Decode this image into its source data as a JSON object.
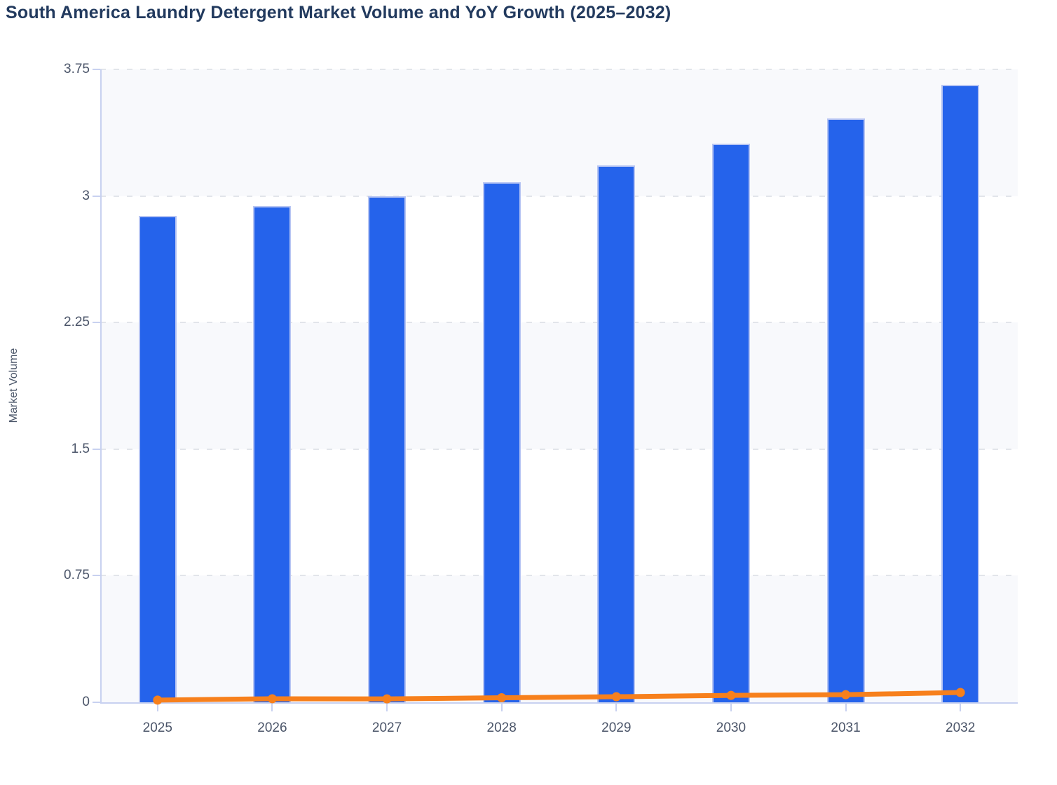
{
  "title": "South America Laundry Detergent Market Volume and YoY Growth (2025–2032)",
  "chart_data": {
    "type": "bar",
    "subtype": "bar+line combo",
    "title": "South America Laundry Detergent Market Volume and YoY Growth (2025–2032)",
    "categories": [
      "2025",
      "2026",
      "2027",
      "2028",
      "2029",
      "2030",
      "2031",
      "2032"
    ],
    "series": [
      {
        "name": "Market Volume",
        "type": "bar",
        "color": "#2563eb",
        "values": [
          2.88,
          2.94,
          3.0,
          3.08,
          3.18,
          3.31,
          3.46,
          3.66
        ]
      },
      {
        "name": "YoY Growth",
        "type": "line",
        "color": "#f7801c",
        "values": [
          0.013,
          0.021,
          0.02,
          0.027,
          0.033,
          0.041,
          0.045,
          0.058
        ]
      }
    ],
    "xlabel": "",
    "ylabel": "Market Volume",
    "ylim": [
      0,
      3.75
    ],
    "yticks": [
      0,
      0.75,
      1.5,
      2.25,
      3,
      3.75
    ],
    "ytick_labels": [
      "0",
      "0.75",
      "1.5",
      "2.25",
      "3",
      "3.75"
    ],
    "grid": "horizontal dashed",
    "stripes": "alternating horizontal bands, gray #f8f9fc / white, gray band at bottom",
    "legend": "none",
    "colors": {
      "bar": "#2563eb",
      "bar_border": "#b7c5f3",
      "line": "#f7801c",
      "title_text": "#223a5e",
      "axis_text": "#4b5569",
      "axis_line": "#c8d1f0",
      "gridline": "#e2e5ea",
      "band_fill": "#f8f9fc",
      "background": "#ffffff"
    }
  }
}
